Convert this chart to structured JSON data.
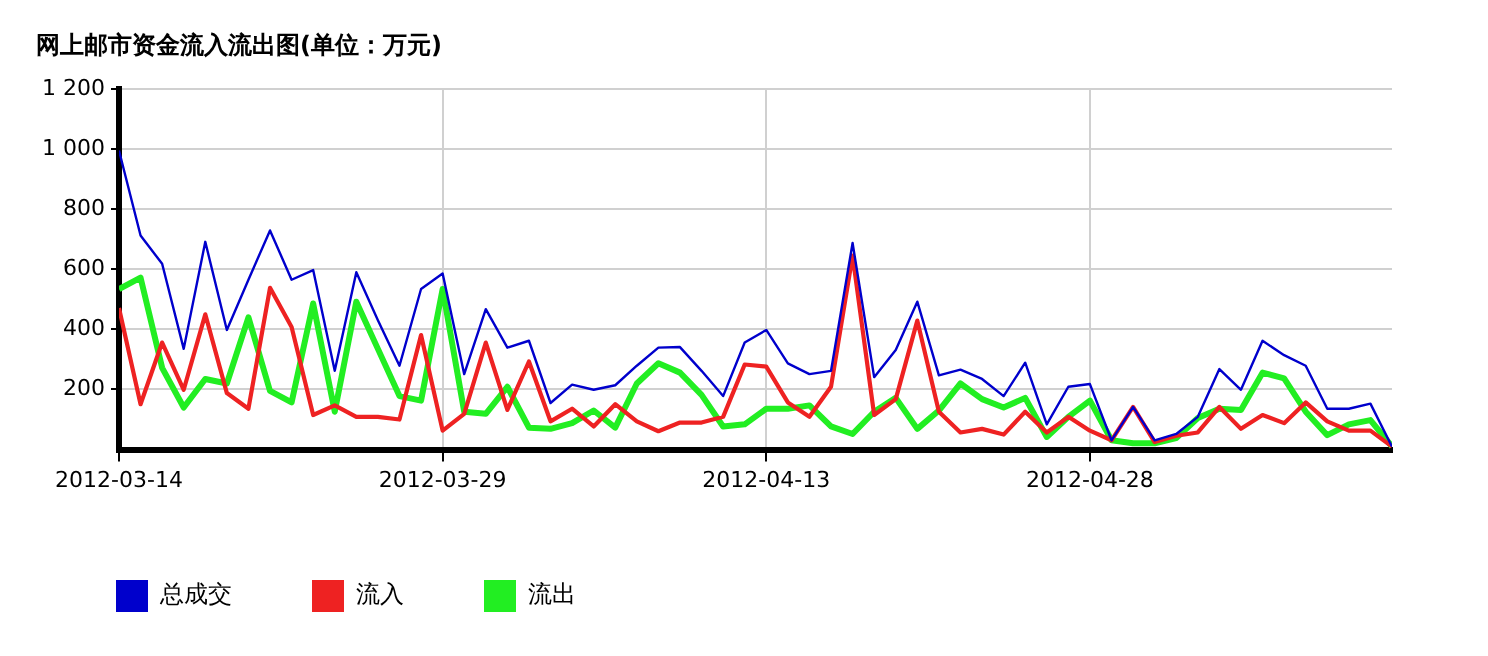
{
  "chart_data": {
    "type": "line",
    "title": "网上邮市资金流入流出图(单位：万元)",
    "x": [
      "2012-03-14",
      "2012-03-15",
      "2012-03-16",
      "2012-03-17",
      "2012-03-18",
      "2012-03-19",
      "2012-03-20",
      "2012-03-21",
      "2012-03-22",
      "2012-03-23",
      "2012-03-24",
      "2012-03-25",
      "2012-03-26",
      "2012-03-27",
      "2012-03-28",
      "2012-03-29",
      "2012-03-30",
      "2012-03-31",
      "2012-04-01",
      "2012-04-02",
      "2012-04-03",
      "2012-04-04",
      "2012-04-05",
      "2012-04-06",
      "2012-04-07",
      "2012-04-08",
      "2012-04-09",
      "2012-04-10",
      "2012-04-11",
      "2012-04-12",
      "2012-04-13",
      "2012-04-14",
      "2012-04-15",
      "2012-04-16",
      "2012-04-17",
      "2012-04-18",
      "2012-04-19",
      "2012-04-20",
      "2012-04-21",
      "2012-04-22",
      "2012-04-23",
      "2012-04-24",
      "2012-04-25",
      "2012-04-26",
      "2012-04-27",
      "2012-04-28",
      "2012-04-29",
      "2012-04-30",
      "2012-05-01",
      "2012-05-02",
      "2012-05-03",
      "2012-05-04",
      "2012-05-05",
      "2012-05-06",
      "2012-05-07",
      "2012-05-08",
      "2012-05-09",
      "2012-05-10",
      "2012-05-11",
      "2012-05-12"
    ],
    "series": [
      {
        "name": "总成交",
        "color": "#0000cc",
        "values": [
          995,
          712,
          618,
          335,
          691,
          398,
          565,
          729,
          565,
          597,
          262,
          590,
          430,
          279,
          534,
          586,
          251,
          467,
          339,
          362,
          155,
          216,
          199,
          214,
          279,
          339,
          341,
          262,
          178,
          356,
          398,
          287,
          251,
          262,
          687,
          241,
          331,
          492,
          247,
          266,
          235,
          178,
          289,
          84,
          209,
          218,
          31,
          142,
          31,
          52,
          109,
          268,
          199,
          362,
          314,
          279,
          136,
          136,
          153,
          10
        ]
      },
      {
        "name": "流入",
        "color": "#ee2222",
        "values": [
          471,
          151,
          356,
          199,
          450,
          188,
          136,
          538,
          408,
          115,
          147,
          109,
          109,
          100,
          381,
          63,
          119,
          356,
          132,
          293,
          94,
          136,
          77,
          151,
          94,
          61,
          90,
          90,
          109,
          283,
          276,
          157,
          109,
          209,
          645,
          115,
          168,
          429,
          126,
          57,
          69,
          50,
          126,
          57,
          109,
          63,
          31,
          142,
          25,
          46,
          57,
          142,
          69,
          115,
          88,
          157,
          94,
          63,
          63,
          10
        ]
      },
      {
        "name": "流出",
        "color": "#22ee22",
        "values": [
          534,
          572,
          272,
          140,
          235,
          220,
          440,
          195,
          157,
          486,
          126,
          492,
          335,
          178,
          163,
          534,
          126,
          119,
          209,
          73,
          69,
          88,
          130,
          73,
          220,
          287,
          256,
          182,
          77,
          84,
          136,
          136,
          147,
          77,
          52,
          126,
          172,
          69,
          130,
          220,
          168,
          140,
          172,
          42,
          109,
          163,
          31,
          21,
          21,
          38,
          105,
          136,
          132,
          256,
          237,
          126,
          48,
          84,
          98,
          10
        ]
      }
    ],
    "xlim": [
      "2012-03-14",
      "2012-05-12"
    ],
    "xticks": [
      "2012-03-14",
      "2012-03-29",
      "2012-04-13",
      "2012-04-28"
    ],
    "ylim": [
      0,
      1200
    ],
    "yticks": [
      200,
      400,
      600,
      800,
      {
        "value": 1000,
        "label": "1 000"
      },
      {
        "value": 1200,
        "label": "1 200"
      }
    ],
    "grid": true,
    "legend": "bottom",
    "marker": "none",
    "line_style": "solid"
  }
}
